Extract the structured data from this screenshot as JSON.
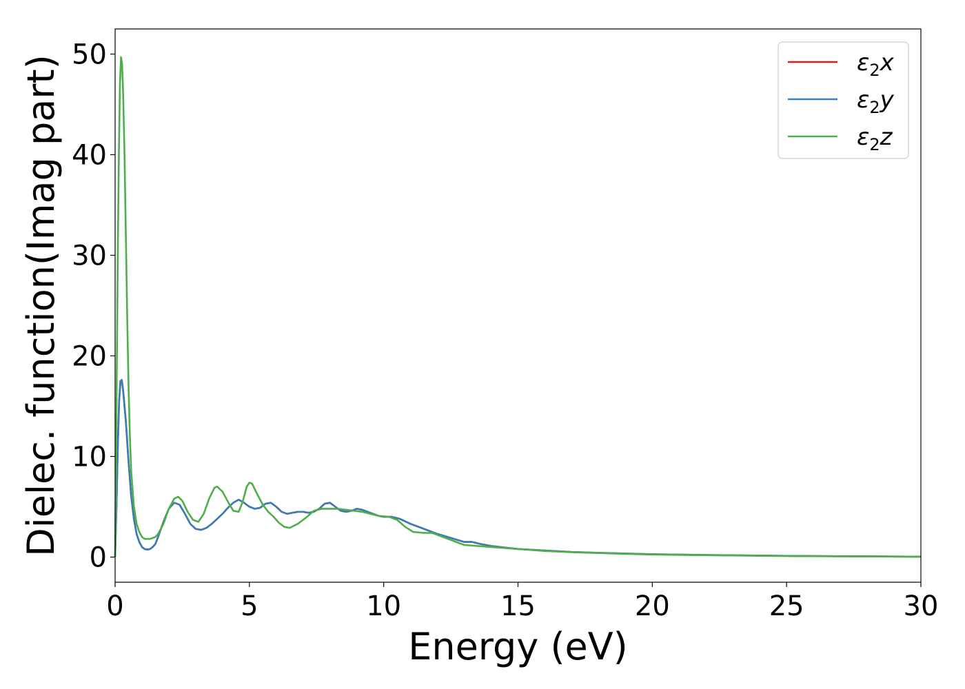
{
  "chart_data": {
    "type": "line",
    "title": "",
    "xlabel": "Energy (eV)",
    "ylabel": "Dielec. function(Imag part)",
    "xlim": [
      0,
      30
    ],
    "ylim": [
      -2.5,
      52.5
    ],
    "xticks": [
      0,
      5,
      10,
      15,
      20,
      25,
      30
    ],
    "yticks": [
      0,
      10,
      20,
      30,
      40,
      50
    ],
    "grid": false,
    "legend_position": "top-right",
    "series": [
      {
        "name": "ε₂x",
        "legend_base": "ε",
        "legend_sub": "2",
        "legend_suffix": "x",
        "color": "#e41a1c",
        "points": [
          [
            0,
            0
          ],
          [
            0.05,
            5
          ],
          [
            0.1,
            11
          ],
          [
            0.15,
            15.5
          ],
          [
            0.2,
            17.5
          ],
          [
            0.25,
            17.6
          ],
          [
            0.3,
            16.5
          ],
          [
            0.4,
            13.5
          ],
          [
            0.5,
            9.5
          ],
          [
            0.6,
            6
          ],
          [
            0.7,
            3.8
          ],
          [
            0.8,
            2.3
          ],
          [
            0.9,
            1.5
          ],
          [
            1.0,
            1.0
          ],
          [
            1.1,
            0.8
          ],
          [
            1.2,
            0.75
          ],
          [
            1.3,
            0.8
          ],
          [
            1.4,
            1.0
          ],
          [
            1.5,
            1.3
          ],
          [
            1.6,
            2.0
          ],
          [
            1.8,
            3.5
          ],
          [
            2.0,
            4.8
          ],
          [
            2.2,
            5.4
          ],
          [
            2.4,
            5.2
          ],
          [
            2.6,
            4.3
          ],
          [
            2.8,
            3.3
          ],
          [
            3.0,
            2.8
          ],
          [
            3.2,
            2.7
          ],
          [
            3.4,
            2.9
          ],
          [
            3.6,
            3.3
          ],
          [
            3.8,
            3.8
          ],
          [
            4.0,
            4.3
          ],
          [
            4.2,
            4.9
          ],
          [
            4.4,
            5.4
          ],
          [
            4.6,
            5.7
          ],
          [
            4.8,
            5.4
          ],
          [
            5.0,
            5.0
          ],
          [
            5.2,
            4.8
          ],
          [
            5.4,
            4.9
          ],
          [
            5.6,
            5.3
          ],
          [
            5.8,
            5.4
          ],
          [
            6.0,
            5.0
          ],
          [
            6.2,
            4.5
          ],
          [
            6.4,
            4.3
          ],
          [
            6.6,
            4.4
          ],
          [
            6.8,
            4.5
          ],
          [
            7.0,
            4.5
          ],
          [
            7.2,
            4.4
          ],
          [
            7.4,
            4.5
          ],
          [
            7.6,
            4.8
          ],
          [
            7.8,
            5.3
          ],
          [
            8.0,
            5.4
          ],
          [
            8.2,
            5.0
          ],
          [
            8.4,
            4.6
          ],
          [
            8.6,
            4.5
          ],
          [
            8.8,
            4.6
          ],
          [
            9.0,
            4.8
          ],
          [
            9.2,
            4.7
          ],
          [
            9.4,
            4.5
          ],
          [
            9.6,
            4.3
          ],
          [
            9.8,
            4.1
          ],
          [
            10.0,
            4.0
          ],
          [
            10.3,
            4.0
          ],
          [
            10.6,
            3.8
          ],
          [
            11.0,
            3.3
          ],
          [
            11.5,
            2.8
          ],
          [
            12.0,
            2.3
          ],
          [
            12.5,
            1.9
          ],
          [
            13.0,
            1.5
          ],
          [
            13.3,
            1.5
          ],
          [
            13.6,
            1.3
          ],
          [
            14.0,
            1.1
          ],
          [
            14.5,
            0.95
          ],
          [
            15.0,
            0.8
          ],
          [
            16,
            0.65
          ],
          [
            17,
            0.5
          ],
          [
            18,
            0.42
          ],
          [
            19,
            0.35
          ],
          [
            20,
            0.28
          ],
          [
            22,
            0.2
          ],
          [
            25,
            0.12
          ],
          [
            27,
            0.08
          ],
          [
            30,
            0.04
          ]
        ]
      },
      {
        "name": "ε₂y",
        "legend_base": "ε",
        "legend_sub": "2",
        "legend_suffix": "y",
        "color": "#377eb8",
        "points": [
          [
            0,
            0
          ],
          [
            0.05,
            5
          ],
          [
            0.1,
            11
          ],
          [
            0.15,
            15.5
          ],
          [
            0.2,
            17.5
          ],
          [
            0.25,
            17.6
          ],
          [
            0.3,
            16.5
          ],
          [
            0.4,
            13.5
          ],
          [
            0.5,
            9.5
          ],
          [
            0.6,
            6
          ],
          [
            0.7,
            3.8
          ],
          [
            0.8,
            2.3
          ],
          [
            0.9,
            1.5
          ],
          [
            1.0,
            1.0
          ],
          [
            1.1,
            0.8
          ],
          [
            1.2,
            0.75
          ],
          [
            1.3,
            0.8
          ],
          [
            1.4,
            1.0
          ],
          [
            1.5,
            1.3
          ],
          [
            1.6,
            2.0
          ],
          [
            1.8,
            3.5
          ],
          [
            2.0,
            4.8
          ],
          [
            2.2,
            5.4
          ],
          [
            2.4,
            5.2
          ],
          [
            2.6,
            4.3
          ],
          [
            2.8,
            3.3
          ],
          [
            3.0,
            2.8
          ],
          [
            3.2,
            2.7
          ],
          [
            3.4,
            2.9
          ],
          [
            3.6,
            3.3
          ],
          [
            3.8,
            3.8
          ],
          [
            4.0,
            4.3
          ],
          [
            4.2,
            4.9
          ],
          [
            4.4,
            5.4
          ],
          [
            4.6,
            5.7
          ],
          [
            4.8,
            5.4
          ],
          [
            5.0,
            5.0
          ],
          [
            5.2,
            4.8
          ],
          [
            5.4,
            4.9
          ],
          [
            5.6,
            5.3
          ],
          [
            5.8,
            5.4
          ],
          [
            6.0,
            5.0
          ],
          [
            6.2,
            4.5
          ],
          [
            6.4,
            4.3
          ],
          [
            6.6,
            4.4
          ],
          [
            6.8,
            4.5
          ],
          [
            7.0,
            4.5
          ],
          [
            7.2,
            4.4
          ],
          [
            7.4,
            4.5
          ],
          [
            7.6,
            4.8
          ],
          [
            7.8,
            5.3
          ],
          [
            8.0,
            5.4
          ],
          [
            8.2,
            5.0
          ],
          [
            8.4,
            4.6
          ],
          [
            8.6,
            4.5
          ],
          [
            8.8,
            4.6
          ],
          [
            9.0,
            4.8
          ],
          [
            9.2,
            4.7
          ],
          [
            9.4,
            4.5
          ],
          [
            9.6,
            4.3
          ],
          [
            9.8,
            4.1
          ],
          [
            10.0,
            4.0
          ],
          [
            10.3,
            4.0
          ],
          [
            10.6,
            3.8
          ],
          [
            11.0,
            3.3
          ],
          [
            11.5,
            2.8
          ],
          [
            12.0,
            2.3
          ],
          [
            12.5,
            1.9
          ],
          [
            13.0,
            1.5
          ],
          [
            13.3,
            1.5
          ],
          [
            13.6,
            1.3
          ],
          [
            14.0,
            1.1
          ],
          [
            14.5,
            0.95
          ],
          [
            15.0,
            0.8
          ],
          [
            16,
            0.65
          ],
          [
            17,
            0.5
          ],
          [
            18,
            0.42
          ],
          [
            19,
            0.35
          ],
          [
            20,
            0.28
          ],
          [
            22,
            0.2
          ],
          [
            25,
            0.12
          ],
          [
            27,
            0.08
          ],
          [
            30,
            0.04
          ]
        ]
      },
      {
        "name": "ε₂z",
        "legend_base": "ε",
        "legend_sub": "2",
        "legend_suffix": "z",
        "color": "#4daf4a",
        "points": [
          [
            0,
            0
          ],
          [
            0.03,
            8
          ],
          [
            0.06,
            18
          ],
          [
            0.1,
            30
          ],
          [
            0.14,
            40
          ],
          [
            0.18,
            47
          ],
          [
            0.22,
            49.7
          ],
          [
            0.26,
            49
          ],
          [
            0.3,
            46
          ],
          [
            0.35,
            40
          ],
          [
            0.4,
            32
          ],
          [
            0.45,
            24
          ],
          [
            0.5,
            17
          ],
          [
            0.55,
            12
          ],
          [
            0.6,
            8.5
          ],
          [
            0.7,
            5
          ],
          [
            0.8,
            3.3
          ],
          [
            0.9,
            2.5
          ],
          [
            1.0,
            2.0
          ],
          [
            1.1,
            1.8
          ],
          [
            1.2,
            1.8
          ],
          [
            1.3,
            1.8
          ],
          [
            1.4,
            1.9
          ],
          [
            1.5,
            2.0
          ],
          [
            1.6,
            2.3
          ],
          [
            1.8,
            3.3
          ],
          [
            2.0,
            4.8
          ],
          [
            2.2,
            5.8
          ],
          [
            2.35,
            6.0
          ],
          [
            2.5,
            5.6
          ],
          [
            2.7,
            4.5
          ],
          [
            2.9,
            3.7
          ],
          [
            3.1,
            3.5
          ],
          [
            3.3,
            4.3
          ],
          [
            3.5,
            5.8
          ],
          [
            3.7,
            6.9
          ],
          [
            3.8,
            7.0
          ],
          [
            4.0,
            6.5
          ],
          [
            4.2,
            5.5
          ],
          [
            4.4,
            4.6
          ],
          [
            4.6,
            4.5
          ],
          [
            4.75,
            5.5
          ],
          [
            4.9,
            7.0
          ],
          [
            5.0,
            7.4
          ],
          [
            5.1,
            7.3
          ],
          [
            5.3,
            6.2
          ],
          [
            5.5,
            5.2
          ],
          [
            5.7,
            4.5
          ],
          [
            5.9,
            4.0
          ],
          [
            6.1,
            3.4
          ],
          [
            6.3,
            3.0
          ],
          [
            6.5,
            2.9
          ],
          [
            6.8,
            3.3
          ],
          [
            7.1,
            3.9
          ],
          [
            7.4,
            4.6
          ],
          [
            7.7,
            4.8
          ],
          [
            8.0,
            4.8
          ],
          [
            8.3,
            4.8
          ],
          [
            8.6,
            4.7
          ],
          [
            8.9,
            4.6
          ],
          [
            9.2,
            4.5
          ],
          [
            9.5,
            4.3
          ],
          [
            9.8,
            4.1
          ],
          [
            10.2,
            4.0
          ],
          [
            10.5,
            3.7
          ],
          [
            10.8,
            3.0
          ],
          [
            11.1,
            2.5
          ],
          [
            11.5,
            2.4
          ],
          [
            11.8,
            2.4
          ],
          [
            12.2,
            2.0
          ],
          [
            12.6,
            1.6
          ],
          [
            13.0,
            1.2
          ],
          [
            13.5,
            1.1
          ],
          [
            14.0,
            1.0
          ],
          [
            15.0,
            0.8
          ],
          [
            16,
            0.6
          ],
          [
            17,
            0.48
          ],
          [
            18,
            0.4
          ],
          [
            19,
            0.32
          ],
          [
            20,
            0.25
          ],
          [
            22,
            0.18
          ],
          [
            25,
            0.1
          ],
          [
            27,
            0.07
          ],
          [
            30,
            0.03
          ]
        ]
      }
    ]
  }
}
